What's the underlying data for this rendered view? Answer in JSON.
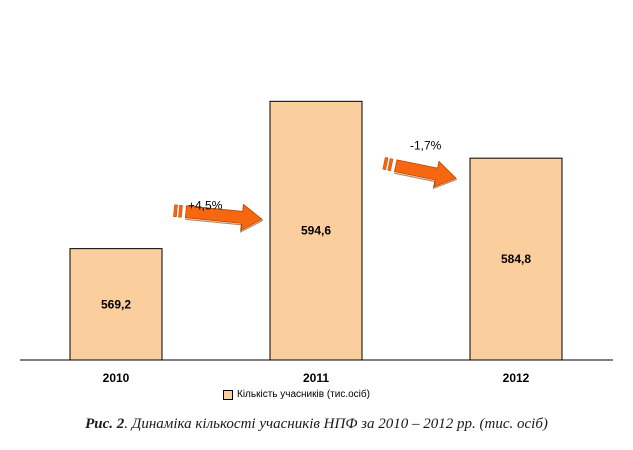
{
  "chart_data": {
    "type": "bar",
    "categories": [
      "2010",
      "2011",
      "2012"
    ],
    "values": [
      569.2,
      594.6,
      584.8
    ],
    "value_labels": [
      "569,2",
      "594,6",
      "584,8"
    ],
    "series": [
      {
        "name": "Кількість учасників (тис.осіб)",
        "values": [
          569.2,
          594.6,
          584.8
        ]
      }
    ],
    "changes": [
      {
        "from": "2010",
        "to": "2011",
        "label": "+4,5%",
        "direction": "up"
      },
      {
        "from": "2011",
        "to": "2012",
        "label": "-1,7%",
        "direction": "down"
      }
    ],
    "ylim": [
      550,
      600
    ],
    "grid": false,
    "legend_position": "bottom",
    "bar_color": "#fbcf9d",
    "arrow_color": "#f7670f"
  },
  "legend": {
    "label": "Кількість учасників (тис.осіб)"
  },
  "caption": {
    "prefix": "Рис. 2",
    "text": ". Динаміка кількості учасників НПФ за 2010 – 2012 рр. (тис. осіб)"
  }
}
